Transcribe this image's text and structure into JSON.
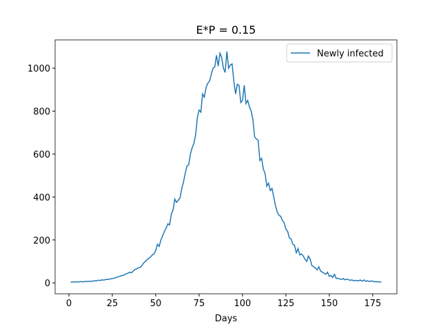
{
  "chart_data": {
    "type": "line",
    "title": "E*P = 0.15",
    "x_label": "Days",
    "x": [
      1,
      2,
      3,
      4,
      5,
      6,
      7,
      8,
      9,
      10,
      11,
      12,
      13,
      14,
      15,
      16,
      17,
      18,
      19,
      20,
      21,
      22,
      23,
      24,
      25,
      26,
      27,
      28,
      29,
      30,
      31,
      32,
      33,
      34,
      35,
      36,
      37,
      38,
      39,
      40,
      41,
      42,
      43,
      44,
      45,
      46,
      47,
      48,
      49,
      50,
      51,
      52,
      53,
      54,
      55,
      56,
      57,
      58,
      59,
      60,
      61,
      62,
      63,
      64,
      65,
      66,
      67,
      68,
      69,
      70,
      71,
      72,
      73,
      74,
      75,
      76,
      77,
      78,
      79,
      80,
      81,
      82,
      83,
      84,
      85,
      86,
      87,
      88,
      89,
      90,
      91,
      92,
      93,
      94,
      95,
      96,
      97,
      98,
      99,
      100,
      101,
      102,
      103,
      104,
      105,
      106,
      107,
      108,
      109,
      110,
      111,
      112,
      113,
      114,
      115,
      116,
      117,
      118,
      119,
      120,
      121,
      122,
      123,
      124,
      125,
      126,
      127,
      128,
      129,
      130,
      131,
      132,
      133,
      134,
      135,
      136,
      137,
      138,
      139,
      140,
      141,
      142,
      143,
      144,
      145,
      146,
      147,
      148,
      149,
      150,
      151,
      152,
      153,
      154,
      155,
      156,
      157,
      158,
      159,
      160,
      161,
      162,
      163,
      164,
      165,
      166,
      167,
      168,
      169,
      170,
      171,
      172,
      173,
      174,
      175,
      176,
      177,
      178,
      179,
      180
    ],
    "series": [
      {
        "name": "Newly infected",
        "color": "#1f77b4",
        "values": [
          3,
          4,
          4,
          5,
          4,
          5,
          6,
          5,
          6,
          7,
          6,
          8,
          7,
          9,
          10,
          9,
          13,
          11,
          14,
          13,
          15,
          17,
          16,
          19,
          20,
          22,
          24,
          28,
          30,
          33,
          35,
          38,
          42,
          45,
          50,
          47,
          55,
          62,
          65,
          70,
          72,
          80,
          92,
          100,
          108,
          115,
          120,
          130,
          135,
          150,
          180,
          170,
          200,
          220,
          240,
          255,
          275,
          270,
          320,
          340,
          390,
          375,
          385,
          395,
          440,
          470,
          510,
          545,
          550,
          600,
          630,
          650,
          690,
          770,
          805,
          795,
          880,
          865,
          910,
          930,
          940,
          970,
          1000,
          1005,
          1060,
          1010,
          1070,
          1050,
          1000,
          980,
          1078,
          1000,
          1015,
          1020,
          940,
          880,
          925,
          920,
          840,
          850,
          920,
          835,
          850,
          820,
          800,
          760,
          680,
          670,
          665,
          570,
          580,
          530,
          510,
          450,
          465,
          430,
          440,
          400,
          360,
          330,
          315,
          310,
          290,
          280,
          250,
          240,
          210,
          205,
          180,
          175,
          140,
          160,
          130,
          135,
          125,
          110,
          100,
          125,
          110,
          80,
          75,
          70,
          60,
          75,
          55,
          50,
          45,
          40,
          50,
          30,
          35,
          25,
          40,
          20,
          22,
          18,
          16,
          20,
          14,
          18,
          15,
          12,
          14,
          10,
          12,
          9,
          11,
          13,
          8,
          14,
          7,
          10,
          6,
          9,
          8,
          5,
          6,
          4,
          5,
          4
        ]
      }
    ],
    "xlim": [
      -7.95,
      188.95
    ],
    "xticks": [
      0,
      25,
      50,
      75,
      100,
      125,
      150,
      175
    ],
    "ylim": [
      -50.75,
      1131.75
    ],
    "yticks": [
      0,
      200,
      400,
      600,
      800,
      1000
    ],
    "legend": "upper right",
    "grid": false
  }
}
